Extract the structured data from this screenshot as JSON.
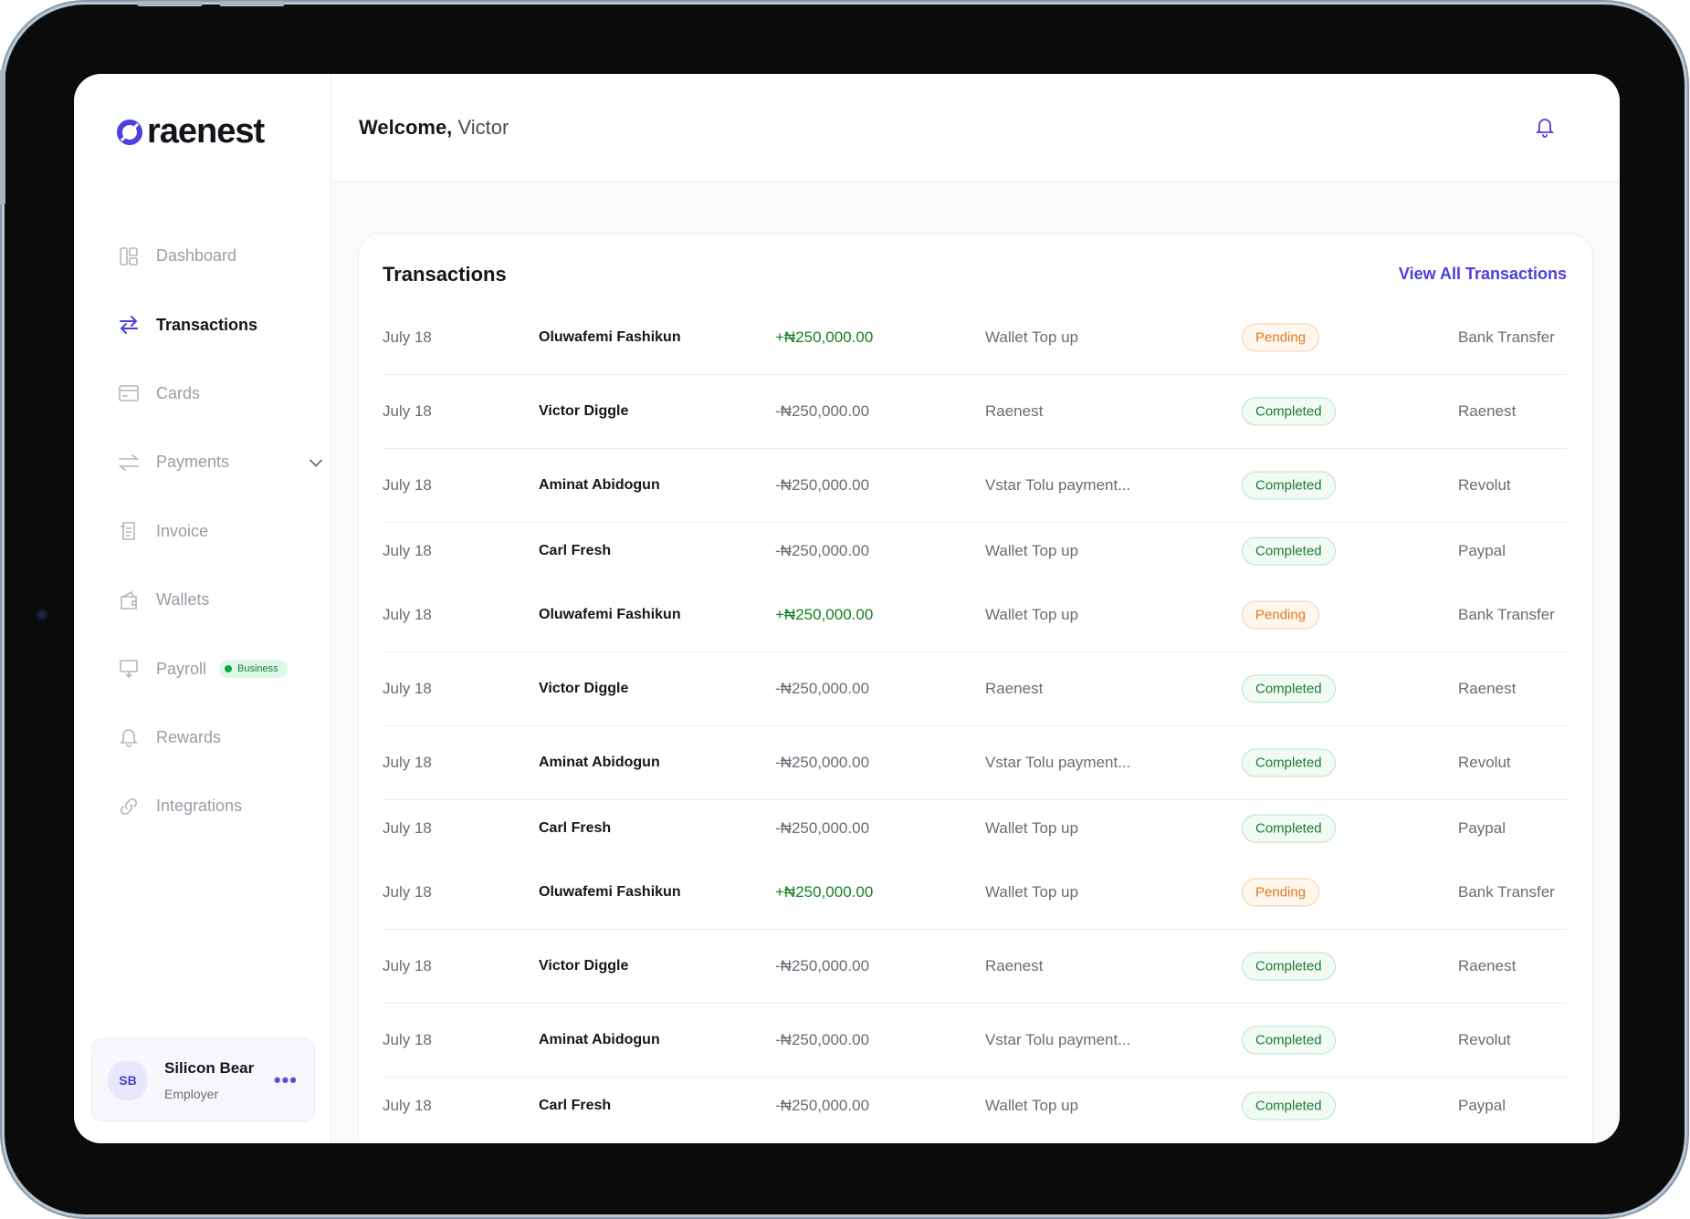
{
  "brand": {
    "name": "raenest",
    "accent": "#4b3fe0"
  },
  "header": {
    "welcome_label": "Welcome,",
    "user_first_name": "Victor"
  },
  "sidebar": {
    "items": [
      {
        "label": "Dashboard",
        "icon": "dashboard-icon"
      },
      {
        "label": "Transactions",
        "icon": "transfer-arrows-icon",
        "active": true
      },
      {
        "label": "Cards",
        "icon": "card-icon"
      },
      {
        "label": "Payments",
        "icon": "payments-icon",
        "has_submenu": true
      },
      {
        "label": "Invoice",
        "icon": "invoice-icon"
      },
      {
        "label": "Wallets",
        "icon": "wallet-icon"
      },
      {
        "label": "Payroll",
        "icon": "payroll-icon",
        "badge": "Business"
      },
      {
        "label": "Rewards",
        "icon": "bell-reward-icon"
      },
      {
        "label": "Integrations",
        "icon": "link-icon"
      }
    ],
    "user": {
      "initials": "SB",
      "name": "Silicon Bear",
      "role": "Employer"
    }
  },
  "transactions": {
    "title": "Transactions",
    "view_all_label": "View All Transactions",
    "rows": [
      {
        "date": "July 18",
        "name": "Oluwafemi Fashikun",
        "amount": "+₦250,000.00",
        "direction": "in",
        "description": "Wallet Top up",
        "status": "Pending",
        "method": "Bank Transfer"
      },
      {
        "date": "July 18",
        "name": "Victor Diggle",
        "amount": "-₦250,000.00",
        "direction": "out",
        "description": "Raenest",
        "status": "Completed",
        "method": "Raenest"
      },
      {
        "date": "July 18",
        "name": "Aminat Abidogun",
        "amount": "-₦250,000.00",
        "direction": "out",
        "description": "Vstar Tolu payment...",
        "status": "Completed",
        "method": "Revolut"
      },
      {
        "date": "July 18",
        "name": "Carl Fresh",
        "amount": "-₦250,000.00",
        "direction": "out",
        "description": "Wallet Top up",
        "status": "Completed",
        "method": "Paypal"
      },
      {
        "date": "July 18",
        "name": "Oluwafemi Fashikun",
        "amount": "+₦250,000.00",
        "direction": "in",
        "description": "Wallet Top up",
        "status": "Pending",
        "method": "Bank Transfer"
      },
      {
        "date": "July 18",
        "name": "Victor Diggle",
        "amount": "-₦250,000.00",
        "direction": "out",
        "description": "Raenest",
        "status": "Completed",
        "method": "Raenest"
      },
      {
        "date": "July 18",
        "name": "Aminat Abidogun",
        "amount": "-₦250,000.00",
        "direction": "out",
        "description": "Vstar Tolu payment...",
        "status": "Completed",
        "method": "Revolut"
      },
      {
        "date": "July 18",
        "name": "Carl Fresh",
        "amount": "-₦250,000.00",
        "direction": "out",
        "description": "Wallet Top up",
        "status": "Completed",
        "method": "Paypal"
      },
      {
        "date": "July 18",
        "name": "Oluwafemi Fashikun",
        "amount": "+₦250,000.00",
        "direction": "in",
        "description": "Wallet Top up",
        "status": "Pending",
        "method": "Bank Transfer"
      },
      {
        "date": "July 18",
        "name": "Victor Diggle",
        "amount": "-₦250,000.00",
        "direction": "out",
        "description": "Raenest",
        "status": "Completed",
        "method": "Raenest"
      },
      {
        "date": "July 18",
        "name": "Aminat Abidogun",
        "amount": "-₦250,000.00",
        "direction": "out",
        "description": "Vstar Tolu payment...",
        "status": "Completed",
        "method": "Revolut"
      },
      {
        "date": "July 18",
        "name": "Carl Fresh",
        "amount": "-₦250,000.00",
        "direction": "out",
        "description": "Wallet Top up",
        "status": "Completed",
        "method": "Paypal"
      }
    ]
  }
}
